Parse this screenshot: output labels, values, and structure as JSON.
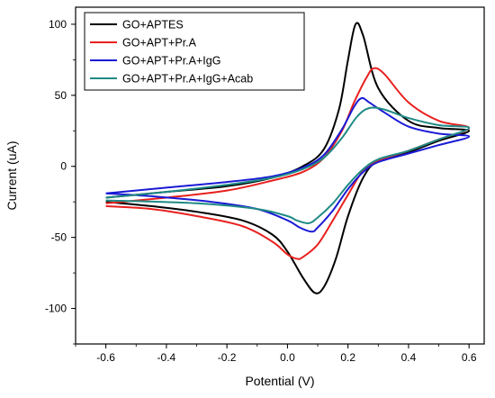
{
  "chart_data": {
    "type": "line",
    "title": "",
    "xlabel": "Potential (V)",
    "ylabel": "Current (uA)",
    "xlim": [
      -0.7,
      0.65
    ],
    "ylim": [
      -125,
      112
    ],
    "xticks": [
      -0.6,
      -0.4,
      -0.2,
      0.0,
      0.2,
      0.4,
      0.6
    ],
    "xtick_labels": [
      "-0.6",
      "-0.4",
      "-0.2",
      "0.0",
      "0.2",
      "0.4",
      "0.6"
    ],
    "yticks": [
      -100,
      -50,
      0,
      50,
      100
    ],
    "ytick_labels": [
      "-100",
      "-50",
      "0",
      "50",
      "100"
    ],
    "grid": false,
    "legend_position": "top-left",
    "series": [
      {
        "name": "GO+APTES",
        "color": "#000000",
        "points": [
          [
            -0.6,
            -22
          ],
          [
            -0.4,
            -18
          ],
          [
            -0.2,
            -14
          ],
          [
            -0.05,
            -8
          ],
          [
            0.05,
            0
          ],
          [
            0.12,
            12
          ],
          [
            0.17,
            40
          ],
          [
            0.2,
            75
          ],
          [
            0.225,
            100
          ],
          [
            0.25,
            92
          ],
          [
            0.3,
            55
          ],
          [
            0.4,
            32
          ],
          [
            0.5,
            27
          ],
          [
            0.6,
            25
          ],
          [
            0.5,
            18
          ],
          [
            0.4,
            10
          ],
          [
            0.3,
            4
          ],
          [
            0.25,
            -8
          ],
          [
            0.2,
            -35
          ],
          [
            0.16,
            -65
          ],
          [
            0.12,
            -85
          ],
          [
            0.09,
            -89
          ],
          [
            0.05,
            -78
          ],
          [
            0.0,
            -60
          ],
          [
            -0.05,
            -48
          ],
          [
            -0.15,
            -38
          ],
          [
            -0.3,
            -32
          ],
          [
            -0.45,
            -28
          ],
          [
            -0.6,
            -25
          ]
        ]
      },
      {
        "name": "GO+APT+Pr.A",
        "color": "#e8201e",
        "points": [
          [
            -0.6,
            -26
          ],
          [
            -0.4,
            -22
          ],
          [
            -0.2,
            -17
          ],
          [
            -0.05,
            -10
          ],
          [
            0.05,
            -4
          ],
          [
            0.12,
            6
          ],
          [
            0.18,
            25
          ],
          [
            0.22,
            45
          ],
          [
            0.26,
            62
          ],
          [
            0.285,
            69
          ],
          [
            0.32,
            65
          ],
          [
            0.4,
            45
          ],
          [
            0.5,
            32
          ],
          [
            0.6,
            27
          ],
          [
            0.5,
            19
          ],
          [
            0.4,
            11
          ],
          [
            0.3,
            4
          ],
          [
            0.25,
            -3
          ],
          [
            0.2,
            -20
          ],
          [
            0.15,
            -38
          ],
          [
            0.1,
            -55
          ],
          [
            0.05,
            -64
          ],
          [
            0.03,
            -65
          ],
          [
            0.0,
            -62
          ],
          [
            -0.05,
            -53
          ],
          [
            -0.15,
            -42
          ],
          [
            -0.3,
            -35
          ],
          [
            -0.45,
            -30
          ],
          [
            -0.6,
            -28
          ]
        ]
      },
      {
        "name": "GO+APT+Pr.A+IgG",
        "color": "#1a1ad6",
        "points": [
          [
            -0.6,
            -19
          ],
          [
            -0.4,
            -15
          ],
          [
            -0.2,
            -11
          ],
          [
            -0.05,
            -7
          ],
          [
            0.05,
            -1
          ],
          [
            0.12,
            8
          ],
          [
            0.18,
            26
          ],
          [
            0.22,
            42
          ],
          [
            0.245,
            48
          ],
          [
            0.27,
            45
          ],
          [
            0.32,
            38
          ],
          [
            0.4,
            28
          ],
          [
            0.5,
            23
          ],
          [
            0.6,
            21
          ],
          [
            0.5,
            15
          ],
          [
            0.4,
            9
          ],
          [
            0.3,
            3
          ],
          [
            0.25,
            -4
          ],
          [
            0.2,
            -16
          ],
          [
            0.15,
            -31
          ],
          [
            0.1,
            -43
          ],
          [
            0.08,
            -46
          ],
          [
            0.04,
            -43
          ],
          [
            0.0,
            -38
          ],
          [
            -0.1,
            -30
          ],
          [
            -0.25,
            -25
          ],
          [
            -0.45,
            -21
          ],
          [
            -0.6,
            -19
          ]
        ]
      },
      {
        "name": "GO+APT+Pr.A+IgG+Acab",
        "color": "#1f8a85",
        "points": [
          [
            -0.6,
            -22
          ],
          [
            -0.4,
            -18
          ],
          [
            -0.2,
            -13
          ],
          [
            -0.05,
            -8
          ],
          [
            0.05,
            -2
          ],
          [
            0.12,
            6
          ],
          [
            0.18,
            20
          ],
          [
            0.23,
            35
          ],
          [
            0.27,
            41
          ],
          [
            0.32,
            40
          ],
          [
            0.4,
            34
          ],
          [
            0.5,
            29
          ],
          [
            0.6,
            27
          ],
          [
            0.5,
            19
          ],
          [
            0.4,
            11
          ],
          [
            0.3,
            5
          ],
          [
            0.25,
            -2
          ],
          [
            0.2,
            -13
          ],
          [
            0.15,
            -26
          ],
          [
            0.1,
            -36
          ],
          [
            0.07,
            -40
          ],
          [
            0.03,
            -38
          ],
          [
            0.0,
            -35
          ],
          [
            -0.1,
            -30
          ],
          [
            -0.3,
            -26
          ],
          [
            -0.6,
            -24
          ]
        ]
      }
    ]
  }
}
